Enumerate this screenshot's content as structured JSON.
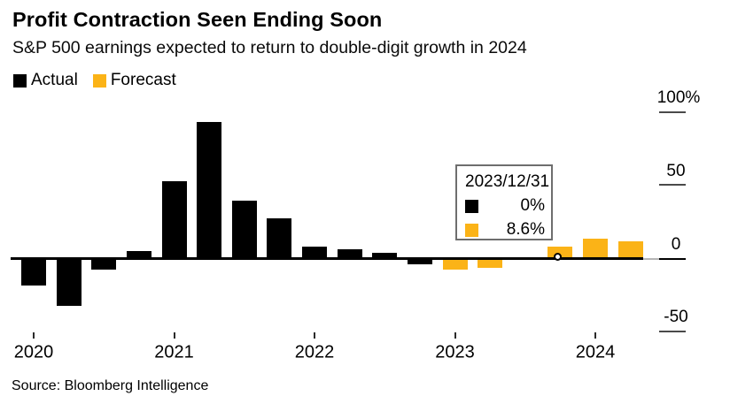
{
  "header": {
    "title": "Profit Contraction Seen Ending Soon",
    "subtitle": "S&P 500 earnings expected to return to double-digit growth in 2024"
  },
  "legend": {
    "items": [
      {
        "label": "Actual",
        "color": "#000000"
      },
      {
        "label": "Forecast",
        "color": "#FBB317"
      }
    ]
  },
  "chart_data": {
    "type": "bar",
    "title": "Profit Contraction Seen Ending Soon",
    "subtitle": "S&P 500 earnings expected to return to double-digit growth in 2024",
    "unit": "percent YoY earnings growth",
    "ylim": [
      -50,
      100
    ],
    "grid": false,
    "legend_position": "top-left",
    "y_ticks": [
      {
        "label": "100%",
        "value": 100
      },
      {
        "label": "50",
        "value": 50
      },
      {
        "label": "0",
        "value": 0
      },
      {
        "label": "-50",
        "value": -50
      }
    ],
    "x_ticks": [
      {
        "label": "2020"
      },
      {
        "label": "2021"
      },
      {
        "label": "2022"
      },
      {
        "label": "2023"
      },
      {
        "label": "2024"
      }
    ],
    "points": [
      {
        "period": "2020 Q1",
        "value": -18,
        "series": "Actual"
      },
      {
        "period": "2020 Q2",
        "value": -32,
        "series": "Actual"
      },
      {
        "period": "2020 Q3",
        "value": -7,
        "series": "Actual"
      },
      {
        "period": "2020 Q4",
        "value": 5.5,
        "series": "Actual"
      },
      {
        "period": "2021 Q1",
        "value": 53,
        "series": "Actual"
      },
      {
        "period": "2021 Q2",
        "value": 94,
        "series": "Actual"
      },
      {
        "period": "2021 Q3",
        "value": 40,
        "series": "Actual"
      },
      {
        "period": "2021 Q4",
        "value": 28,
        "series": "Actual"
      },
      {
        "period": "2022 Q1",
        "value": 8.5,
        "series": "Actual"
      },
      {
        "period": "2022 Q2",
        "value": 6.7,
        "series": "Actual"
      },
      {
        "period": "2022 Q3",
        "value": 4.3,
        "series": "Actual"
      },
      {
        "period": "2022 Q4",
        "value": -3.5,
        "series": "Actual"
      },
      {
        "period": "2023 Q1",
        "value": -7,
        "series": "Forecast"
      },
      {
        "period": "2023 Q2",
        "value": -5.5,
        "series": "Forecast"
      },
      {
        "period": "2023 Q3",
        "value": 0,
        "series": "Actual"
      },
      {
        "period": "2023 Q4",
        "value": 8.6,
        "series": "Forecast"
      },
      {
        "period": "2024 Q1",
        "value": 14,
        "series": "Forecast"
      },
      {
        "period": "2024 Q2",
        "value": 12,
        "series": "Forecast"
      }
    ],
    "highlight": {
      "period": "2023 Q4",
      "date": "2023/12/31",
      "actual": 0,
      "forecast": 8.6
    }
  },
  "tooltip": {
    "date": "2023/12/31",
    "rows": [
      {
        "series": "Actual",
        "value": "0%",
        "color": "#000000"
      },
      {
        "series": "Forecast",
        "value": "8.6%",
        "color": "#FBB317"
      }
    ]
  },
  "source": "Source: Bloomberg Intelligence",
  "colors": {
    "actual": "#000000",
    "forecast": "#FBB317",
    "axis": "#000000",
    "tick": "#4a4a4a"
  }
}
